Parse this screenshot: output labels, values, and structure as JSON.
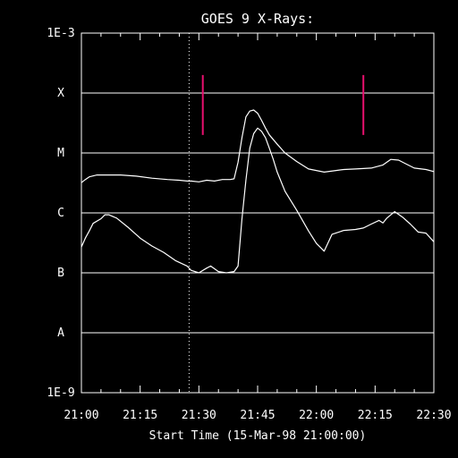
{
  "chart_data": {
    "type": "line",
    "title": "GOES 9 X-Rays:",
    "xlabel": "Start Time (15-Mar-98 21:00:00)",
    "x_ticks": [
      "21:00",
      "21:15",
      "21:30",
      "21:45",
      "22:00",
      "22:15",
      "22:30"
    ],
    "xlim_minutes": [
      0,
      90
    ],
    "y_scale": "log",
    "ylim": [
      1e-09,
      0.001
    ],
    "y_tick_labels": [
      "1E-9",
      "A",
      "B",
      "C",
      "M",
      "X",
      "1E-3"
    ],
    "grid_lines_at": [
      "A",
      "B",
      "C",
      "M",
      "X"
    ],
    "dotted_line_minute": 27.5,
    "markers_minutes": [
      31,
      72
    ],
    "markers_range": [
      0.0002,
      2e-05
    ],
    "series": [
      {
        "x": [
          0,
          1,
          2,
          4,
          6,
          10,
          14,
          18,
          22,
          25,
          27,
          28,
          30,
          32,
          34,
          36,
          38,
          39,
          40,
          41,
          42,
          43,
          44,
          45,
          46,
          47,
          48,
          50,
          52,
          55,
          58,
          62,
          65,
          67,
          70,
          74,
          77,
          79,
          81,
          83,
          85,
          88,
          90
        ],
        "y": [
          3.2e-06,
          3.6e-06,
          4e-06,
          4.3e-06,
          4.3e-06,
          4.3e-06,
          4.1e-06,
          3.8e-06,
          3.6e-06,
          3.5e-06,
          3.4e-06,
          3.4e-06,
          3.3e-06,
          3.5e-06,
          3.4e-06,
          3.6e-06,
          3.6e-06,
          3.7e-06,
          7e-06,
          1.8e-05,
          4e-05,
          5e-05,
          5.2e-05,
          4.6e-05,
          3.5e-05,
          2.6e-05,
          2e-05,
          1.4e-05,
          1e-05,
          7.2e-06,
          5.4e-06,
          4.8e-06,
          5.1e-06,
          5.3e-06,
          5.4e-06,
          5.6e-06,
          6.3e-06,
          7.8e-06,
          7.6e-06,
          6.5e-06,
          5.6e-06,
          5.3e-06,
          4.9e-06
        ]
      },
      {
        "x": [
          0,
          1,
          2,
          3,
          5,
          6,
          7,
          9,
          12,
          15,
          18,
          21,
          24,
          27,
          28,
          30,
          32,
          33,
          35,
          37,
          39,
          40,
          41,
          42,
          43,
          44,
          45,
          46,
          47,
          48,
          49,
          50,
          52,
          55,
          58,
          60,
          62,
          64,
          67,
          70,
          72,
          74,
          76,
          77,
          78,
          80,
          82,
          84,
          86,
          88,
          90
        ],
        "y": [
          2.7e-07,
          3.8e-07,
          5e-07,
          6.7e-07,
          8e-07,
          9.3e-07,
          9.3e-07,
          8.2e-07,
          5.7e-07,
          3.8e-07,
          2.8e-07,
          2.2e-07,
          1.6e-07,
          1.3e-07,
          1.1e-07,
          1e-07,
          1.2e-07,
          1.3e-07,
          1.05e-07,
          1e-07,
          1.05e-07,
          1.3e-07,
          8e-07,
          3.5e-06,
          1.2e-05,
          2.1e-05,
          2.6e-05,
          2.3e-05,
          1.8e-05,
          1.2e-05,
          7.8e-06,
          4.8e-06,
          2.3e-06,
          1.1e-06,
          5e-07,
          3.1e-07,
          2.3e-07,
          4.4e-07,
          5.1e-07,
          5.3e-07,
          5.6e-07,
          6.5e-07,
          7.5e-07,
          6.8e-07,
          8.2e-07,
          1.05e-06,
          8.5e-07,
          6.5e-07,
          4.8e-07,
          4.6e-07,
          3.3e-07
        ]
      }
    ]
  },
  "colors": {
    "background": "#000000",
    "axis": "#ffffff",
    "curve": "#ffffff",
    "marker": "#e8106e"
  }
}
